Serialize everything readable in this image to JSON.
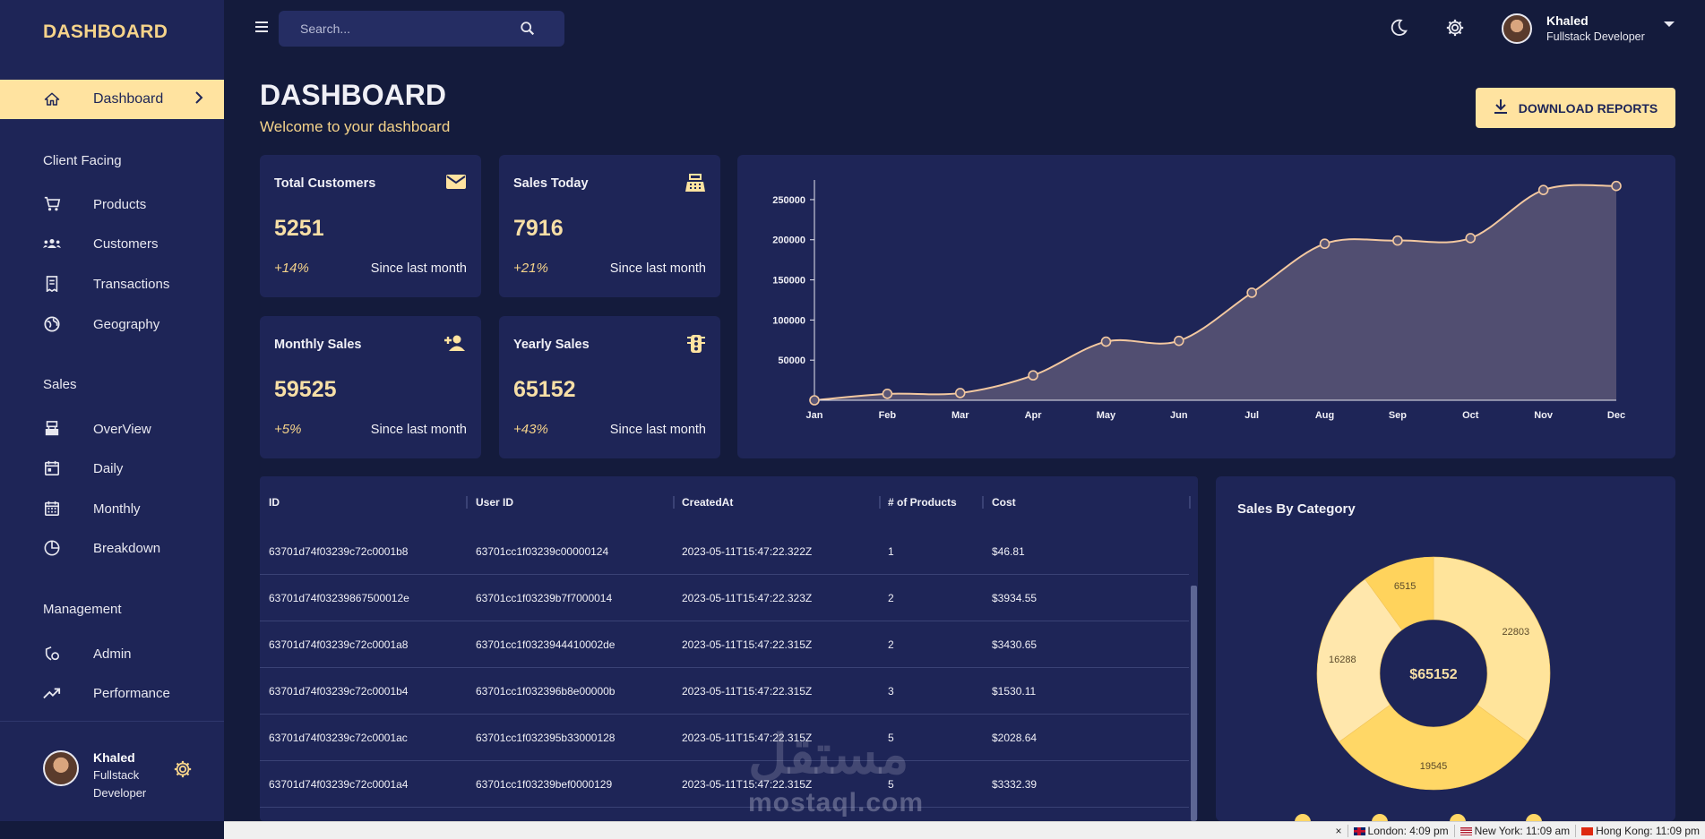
{
  "brand": "DASHBOARD",
  "sidebar": {
    "active": {
      "label": "Dashboard",
      "icon": "home-icon"
    },
    "sections": [
      {
        "title": "Client Facing",
        "items": [
          {
            "label": "Products",
            "icon": "cart-icon"
          },
          {
            "label": "Customers",
            "icon": "people-icon"
          },
          {
            "label": "Transactions",
            "icon": "receipt-icon"
          },
          {
            "label": "Geography",
            "icon": "globe-icon"
          }
        ]
      },
      {
        "title": "Sales",
        "items": [
          {
            "label": "OverView",
            "icon": "register-icon"
          },
          {
            "label": "Daily",
            "icon": "calendar-icon"
          },
          {
            "label": "Monthly",
            "icon": "calendar-month-icon"
          },
          {
            "label": "Breakdown",
            "icon": "pie-icon"
          }
        ]
      },
      {
        "title": "Management",
        "items": [
          {
            "label": "Admin",
            "icon": "admin-icon"
          },
          {
            "label": "Performance",
            "icon": "trending-up-icon"
          }
        ]
      }
    ],
    "user": {
      "name": "Khaled",
      "role": "Fullstack Developer"
    }
  },
  "topbar": {
    "search_placeholder": "Search...",
    "user_name": "Khaled",
    "user_role": "Fullstack Developer"
  },
  "header": {
    "title": "DASHBOARD",
    "subtitle": "Welcome to your dashboard",
    "download_label": "DOWNLOAD REPORTS"
  },
  "stats": [
    {
      "title": "Total Customers",
      "value": "5251",
      "delta": "+14%",
      "since": "Since last month",
      "icon": "email-icon"
    },
    {
      "title": "Sales Today",
      "value": "7916",
      "delta": "+21%",
      "since": "Since last month",
      "icon": "register-icon"
    },
    {
      "title": "Monthly Sales",
      "value": "59525",
      "delta": "+5%",
      "since": "Since last month",
      "icon": "person-add-icon"
    },
    {
      "title": "Yearly Sales",
      "value": "65152",
      "delta": "+43%",
      "since": "Since last month",
      "icon": "traffic-icon"
    }
  ],
  "chart_data": {
    "type": "area",
    "x": [
      "Jan",
      "Feb",
      "Mar",
      "Apr",
      "May",
      "Jun",
      "Jul",
      "Aug",
      "Sep",
      "Oct",
      "Nov",
      "Dec"
    ],
    "values": [
      0,
      8000,
      9000,
      31000,
      73000,
      74000,
      134000,
      195000,
      199000,
      202000,
      262000,
      267000
    ],
    "yticks": [
      50000,
      100000,
      150000,
      200000,
      250000
    ],
    "ylim": [
      0,
      270000
    ],
    "colors": {
      "line": "#f3c8a0",
      "fill": "#5a5676"
    }
  },
  "table": {
    "columns": [
      "ID",
      "User ID",
      "CreatedAt",
      "# of Products",
      "Cost"
    ],
    "rows": [
      [
        "63701d74f03239c72c0001b8",
        "63701cc1f03239c00000124",
        "2023-05-11T15:47:22.322Z",
        "1",
        "$46.81"
      ],
      [
        "63701d74f03239867500012e",
        "63701cc1f03239b7f7000014",
        "2023-05-11T15:47:22.323Z",
        "2",
        "$3934.55"
      ],
      [
        "63701d74f03239c72c0001a8",
        "63701cc1f0323944410002de",
        "2023-05-11T15:47:22.315Z",
        "2",
        "$3430.65"
      ],
      [
        "63701d74f03239c72c0001b4",
        "63701cc1f032396b8e00000b",
        "2023-05-11T15:47:22.315Z",
        "3",
        "$1530.11"
      ],
      [
        "63701d74f03239c72c0001ac",
        "63701cc1f032395b33000128",
        "2023-05-11T15:47:22.315Z",
        "5",
        "$2028.64"
      ],
      [
        "63701d74f03239c72c0001a4",
        "63701cc1f03239bef0000129",
        "2023-05-11T15:47:22.315Z",
        "5",
        "$3332.39"
      ]
    ]
  },
  "donut": {
    "title": "Sales By Category",
    "center_label": "$65152",
    "slices": [
      {
        "value": 22803,
        "label": "22803",
        "color": "#ffe49b"
      },
      {
        "value": 19545,
        "label": "19545",
        "color": "#ffd766"
      },
      {
        "value": 16288,
        "label": "16288",
        "color": "#ffe7ac"
      },
      {
        "value": 6515,
        "label": "6515",
        "color": "#ffd35c"
      }
    ]
  },
  "watermark": {
    "arabic": "مستقل",
    "latin": "mostaql.com"
  },
  "statusbar": {
    "items": [
      "London: 4:09 pm",
      "New York: 11:09 am",
      "Hong Kong: 11:09 pm"
    ]
  }
}
